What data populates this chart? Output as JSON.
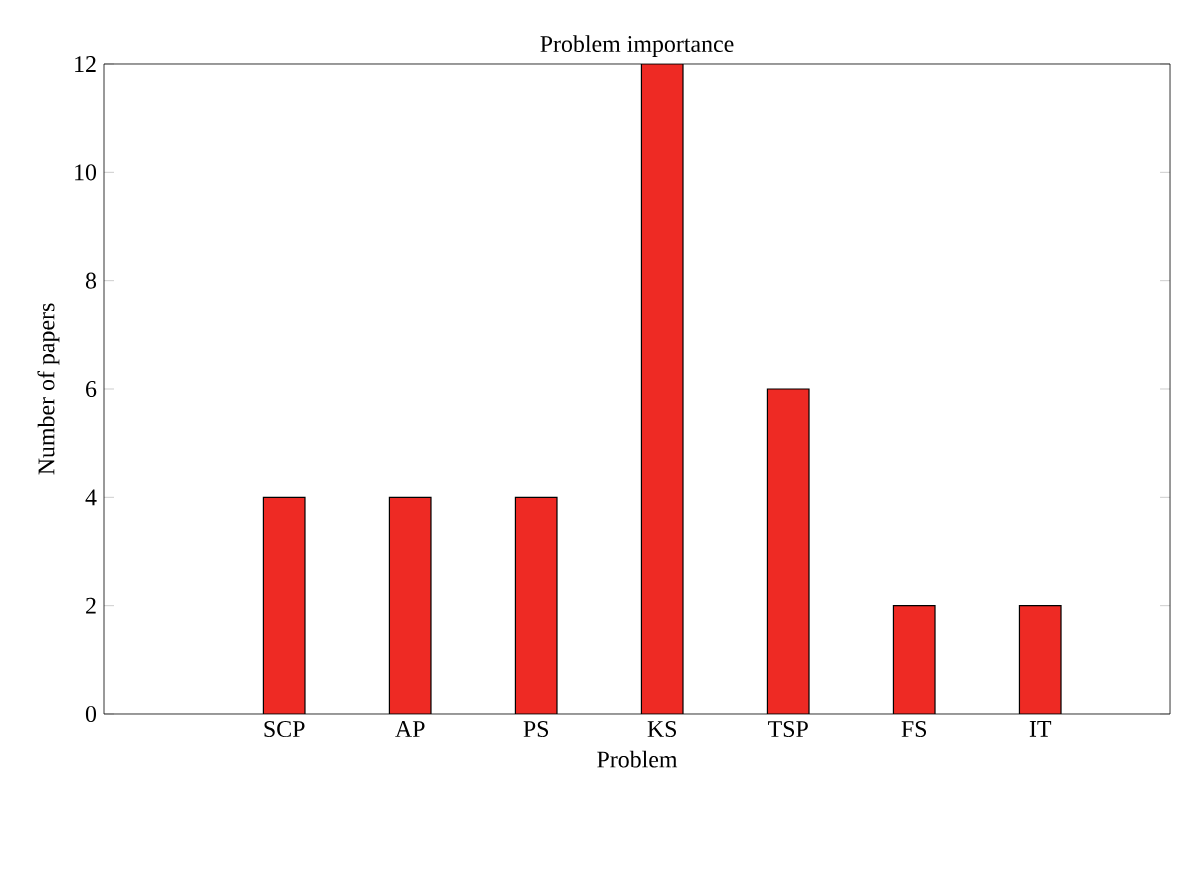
{
  "chart_data": {
    "type": "bar",
    "title": "Problem importance",
    "xlabel": "Problem",
    "ylabel": "Number of papers",
    "categories": [
      "SCP",
      "AP",
      "PS",
      "KS",
      "TSP",
      "FS",
      "IT"
    ],
    "values": [
      4,
      4,
      4,
      12,
      6,
      2,
      2
    ],
    "color": "#ee2a24",
    "ylim": [
      0,
      12
    ],
    "yticks": [
      0,
      2,
      4,
      6,
      8,
      10,
      12
    ],
    "grid": false
  }
}
